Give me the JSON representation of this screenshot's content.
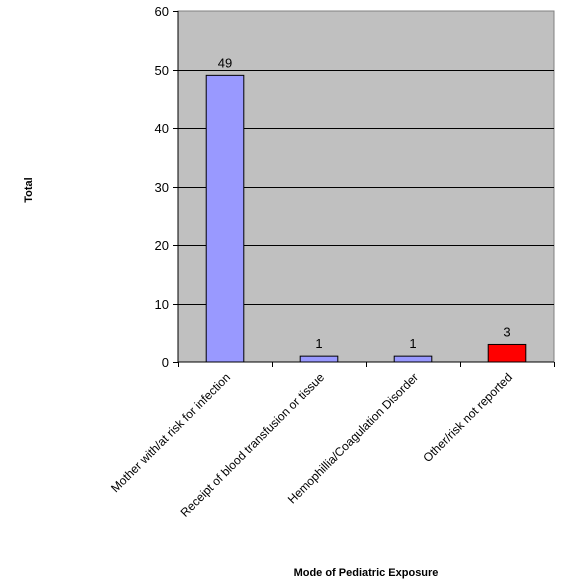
{
  "chart_data": {
    "type": "bar",
    "categories": [
      "Mother with/at risk for infection",
      "Receipt of blood transfusion or tissue",
      "Hemophillia/Coagulation Disorder",
      "Other/risk not reported"
    ],
    "values": [
      49,
      1,
      1,
      3
    ],
    "data_labels": [
      "49",
      "1",
      "1",
      "3"
    ],
    "bar_colors": [
      "#9999ff",
      "#9999ff",
      "#9999ff",
      "#ff0000"
    ],
    "title": "",
    "xlabel": "Mode of Pediatric Exposure",
    "ylabel": "Total",
    "ylim": [
      0,
      60
    ],
    "yticks": [
      0,
      10,
      20,
      30,
      40,
      50,
      60
    ],
    "grid": true,
    "legend": "none",
    "plot_background": "#c0c0c0"
  }
}
